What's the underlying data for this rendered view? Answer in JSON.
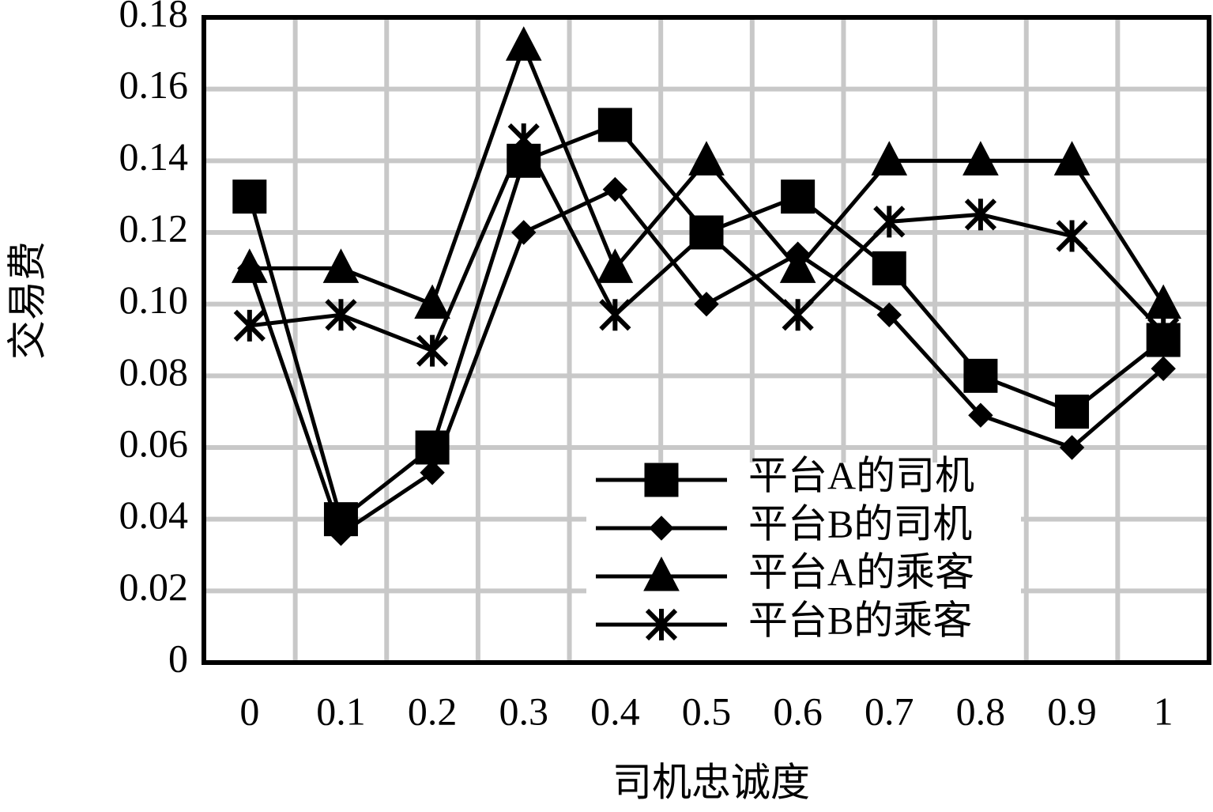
{
  "chart_data": {
    "type": "line",
    "x_label": "司机忠诚度",
    "y_label": "交易费",
    "categories": [
      "0",
      "0.1",
      "0.2",
      "0.3",
      "0.4",
      "0.5",
      "0.6",
      "0.7",
      "0.8",
      "0.9",
      "1"
    ],
    "series": [
      {
        "name": "平台A的司机",
        "color": "#000000",
        "marker": "square",
        "values": [
          0.13,
          0.04,
          0.06,
          0.14,
          0.15,
          0.12,
          0.13,
          0.11,
          0.08,
          0.07,
          0.09
        ]
      },
      {
        "name": "平台B的司机",
        "color": "#000000",
        "marker": "diamond",
        "values": [
          0.11,
          0.036,
          0.053,
          0.12,
          0.132,
          0.1,
          0.114,
          0.097,
          0.069,
          0.06,
          0.082
        ]
      },
      {
        "name": "平台A的乘客",
        "color": "#000000",
        "marker": "triangle",
        "values": [
          0.11,
          0.11,
          0.1,
          0.172,
          0.11,
          0.14,
          0.11,
          0.14,
          0.14,
          0.14,
          0.1
        ]
      },
      {
        "name": "平台B的乘客",
        "color": "#000000",
        "marker": "star",
        "values": [
          0.094,
          0.097,
          0.087,
          0.146,
          0.097,
          0.12,
          0.097,
          0.123,
          0.125,
          0.119,
          0.092
        ]
      }
    ],
    "ylim": [
      0,
      0.18
    ],
    "yticks": [
      0,
      0.02,
      0.04,
      0.06,
      0.08,
      {
        "value": 0.1,
        "label": "0.10"
      },
      0.12,
      0.14,
      0.16,
      0.18
    ],
    "grid": true,
    "legend": "lower-right"
  }
}
